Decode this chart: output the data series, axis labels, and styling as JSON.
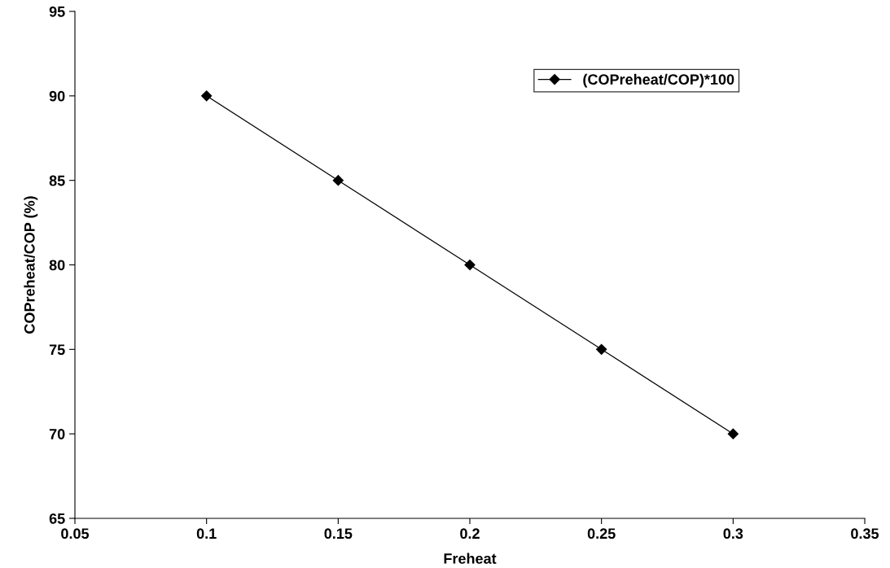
{
  "chart_data": {
    "type": "line",
    "xlabel": "Freheat",
    "ylabel": "COPreheat/COP (%)",
    "x": [
      0.1,
      0.15,
      0.2,
      0.25,
      0.3
    ],
    "series": [
      {
        "name": "(COPreheat/COP)*100",
        "color": "#000000",
        "values": [
          90,
          85,
          80,
          75,
          70
        ]
      }
    ],
    "xlim": [
      0.05,
      0.35
    ],
    "xticks": [
      0.05,
      0.1,
      0.15,
      0.2,
      0.25,
      0.3,
      0.35
    ],
    "ylim": [
      65,
      95
    ],
    "yticks": [
      65,
      70,
      75,
      80,
      85,
      90,
      95
    ],
    "grid": false,
    "legend": "top right",
    "marker": "diamond",
    "line_style": "solid"
  }
}
